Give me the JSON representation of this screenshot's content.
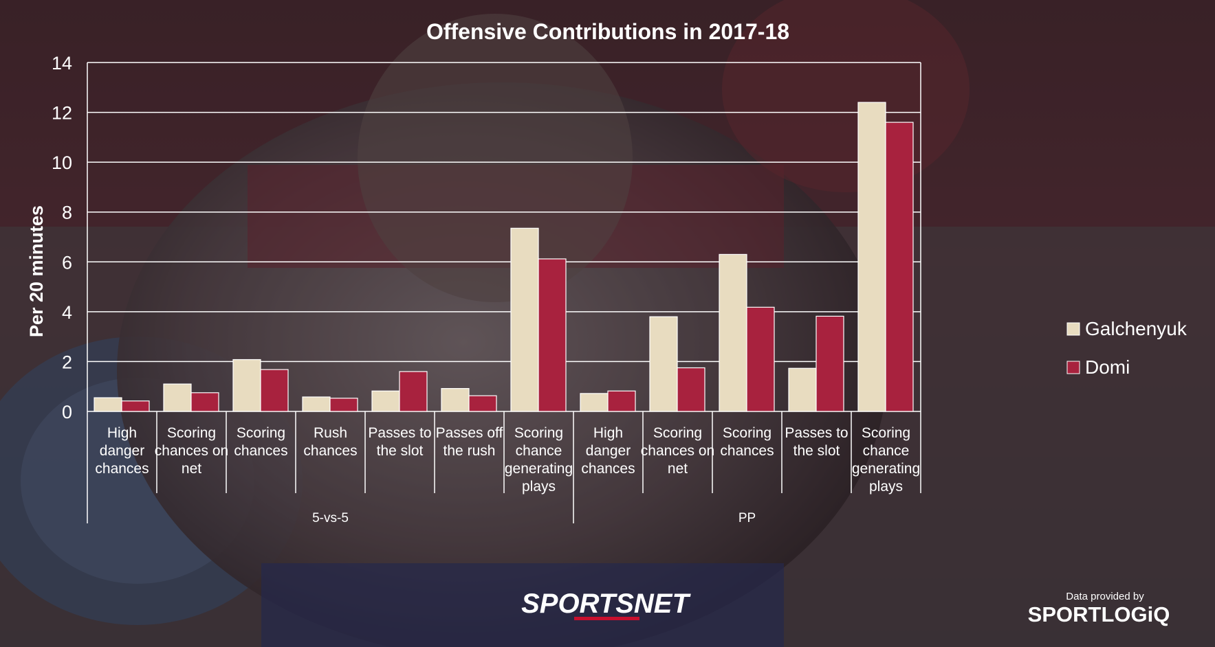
{
  "chart_data": {
    "type": "bar",
    "title": "Offensive Contributions in 2017-18",
    "ylabel": "Per 20 minutes",
    "xlabel": "",
    "ylim": [
      0,
      14
    ],
    "yticks": [
      0,
      2,
      4,
      6,
      8,
      10,
      12,
      14
    ],
    "ytick_labels": [
      "0",
      "2",
      "4",
      "6",
      "8",
      "10",
      "12",
      "14"
    ],
    "grid": true,
    "legend_position": "right",
    "categories": [
      "High danger chances",
      "Scoring chances on net",
      "Scoring chances",
      "Rush chances",
      "Passes to the slot",
      "Passes off the rush",
      "Scoring chance generating plays",
      "High danger chances",
      "Scoring chances on net",
      "Scoring chances",
      "Passes to the slot",
      "Scoring chance generating plays"
    ],
    "category_lines": [
      [
        "High",
        "danger",
        "chances"
      ],
      [
        "Scoring",
        "chances on",
        "net"
      ],
      [
        "Scoring",
        "chances"
      ],
      [
        "Rush",
        "chances"
      ],
      [
        "Passes to",
        "the slot"
      ],
      [
        "Passes off",
        "the rush"
      ],
      [
        "Scoring",
        "chance",
        "generating",
        "plays"
      ],
      [
        "High",
        "danger",
        "chances"
      ],
      [
        "Scoring",
        "chances on",
        "net"
      ],
      [
        "Scoring",
        "chances"
      ],
      [
        "Passes to",
        "the slot"
      ],
      [
        "Scoring",
        "chance",
        "generating",
        "plays"
      ]
    ],
    "groups": [
      {
        "name": "5-vs-5",
        "start": 0,
        "count": 7
      },
      {
        "name": "PP",
        "start": 7,
        "count": 5
      }
    ],
    "series": [
      {
        "name": "Galchenyuk",
        "color": "#e8dcc0",
        "values": [
          0.55,
          1.1,
          2.08,
          0.58,
          0.82,
          0.92,
          7.35,
          0.72,
          3.8,
          6.3,
          1.73,
          12.4
        ]
      },
      {
        "name": "Domi",
        "color": "#a8223e",
        "values": [
          0.42,
          0.75,
          1.68,
          0.53,
          1.6,
          0.63,
          6.12,
          0.82,
          1.75,
          4.18,
          3.82,
          11.6
        ]
      }
    ]
  },
  "watermarks": {
    "sportsnet": "SPORTSNET",
    "provided_by": "Data provided by",
    "sportlogiq": "SPORTLOGiQ"
  },
  "colors": {
    "backdrop": "#3a2f33",
    "text": "#ffffff",
    "grid": "#ffffff"
  }
}
